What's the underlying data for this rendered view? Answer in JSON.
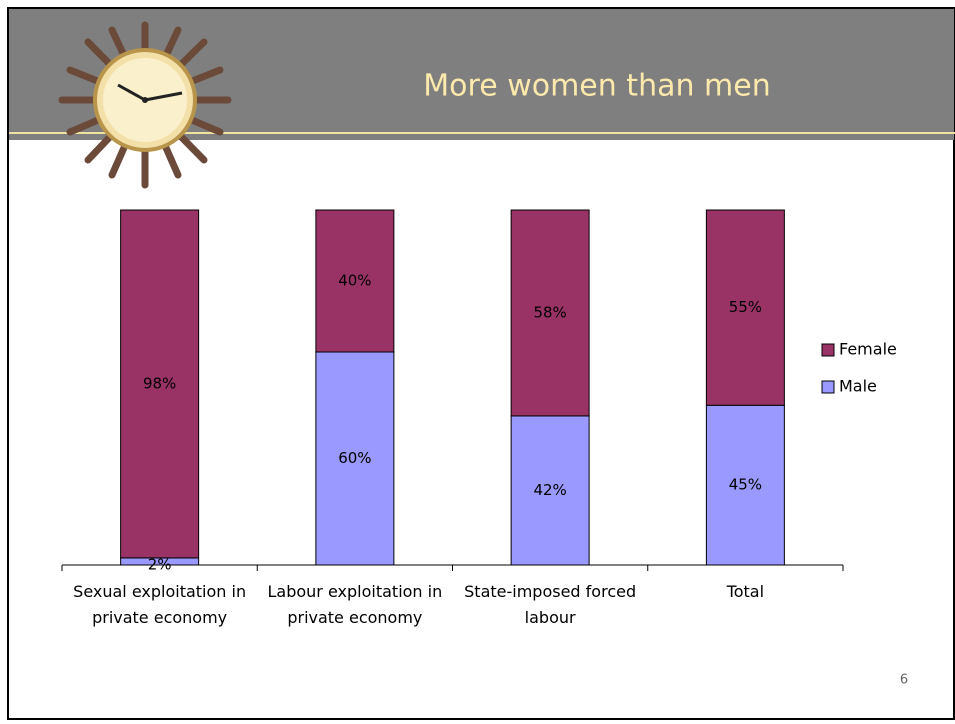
{
  "chart_data": {
    "type": "stacked_bar",
    "title": "More women than men",
    "categories": [
      "Sexual exploitation in private economy",
      "Labour exploitation in private economy",
      "State-imposed forced labour",
      "Total"
    ],
    "series": [
      {
        "name": "Male",
        "color": "#9999ff",
        "values": [
          2,
          60,
          42,
          45
        ],
        "value_labels": [
          "2%",
          "60%",
          "42%",
          "45%"
        ]
      },
      {
        "name": "Female",
        "color": "#993366",
        "values": [
          98,
          40,
          58,
          55
        ],
        "value_labels": [
          "98%",
          "40%",
          "58%",
          "55%"
        ]
      }
    ],
    "ylim": [
      0,
      100
    ],
    "legend": "right",
    "page_number": "6"
  }
}
